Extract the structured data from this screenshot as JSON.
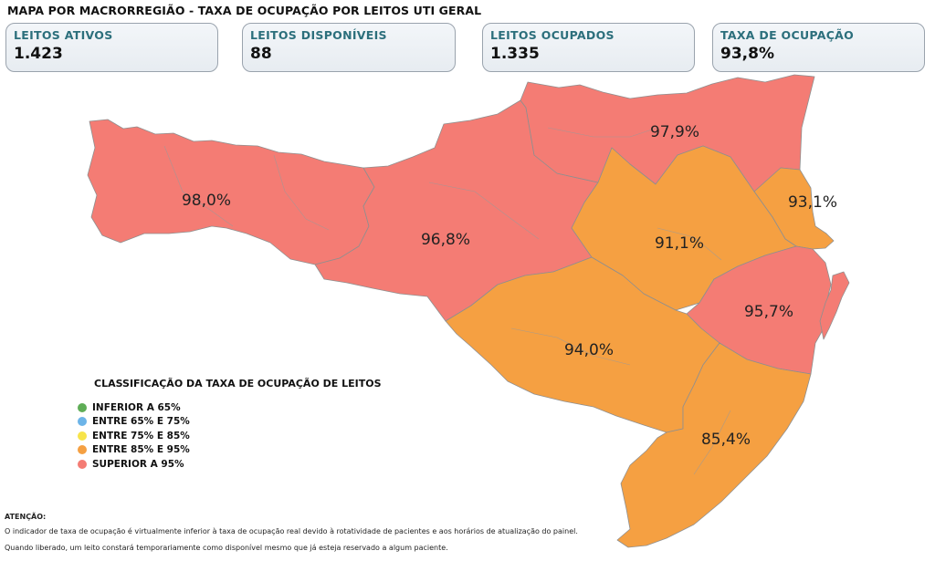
{
  "header": {
    "title": "MAPA POR MACRORREGIÃO - TAXA DE OCUPAÇÃO POR LEITOS UTI GERAL"
  },
  "cards": [
    {
      "label": "LEITOS ATIVOS",
      "value": "1.423"
    },
    {
      "label": "LEITOS DISPONÍVEIS",
      "value": "88"
    },
    {
      "label": "LEITOS OCUPADOS",
      "value": "1.335"
    },
    {
      "label": "TAXA DE OCUPAÇÃO",
      "value": "93,8%"
    }
  ],
  "map": {
    "regions": [
      {
        "value": "98,0%",
        "color": "#f47c74"
      },
      {
        "value": "96,8%",
        "color": "#f47c74"
      },
      {
        "value": "97,9%",
        "color": "#f47c74"
      },
      {
        "value": "93,1%",
        "color": "#f5a042"
      },
      {
        "value": "91,1%",
        "color": "#f5a042"
      },
      {
        "value": "95,7%",
        "color": "#f47c74"
      },
      {
        "value": "94,0%",
        "color": "#f5a042"
      },
      {
        "value": "85,4%",
        "color": "#f5a042"
      }
    ]
  },
  "legend": {
    "title": "CLASSIFICAÇÃO DA TAXA DE OCUPAÇÃO DE LEITOS",
    "items": [
      {
        "label": "INFERIOR A 65%",
        "color": "#5fad56"
      },
      {
        "label": "ENTRE 65% E 75%",
        "color": "#6cb4e8"
      },
      {
        "label": "ENTRE 75% E 85%",
        "color": "#f7e44a"
      },
      {
        "label": "ENTRE 85% E 95%",
        "color": "#f5a042"
      },
      {
        "label": "SUPERIOR A 95%",
        "color": "#f47c74"
      }
    ]
  },
  "notes": {
    "title": "ATENÇÃO:",
    "line1": "O indicador de taxa de ocupação é virtualmente inferior à taxa de ocupação real devido à rotatividade de pacientes e aos horários de atualização do painel.",
    "line2": "Quando liberado, um leito constará temporariamente como disponível mesmo que já esteja reservado a algum paciente."
  }
}
